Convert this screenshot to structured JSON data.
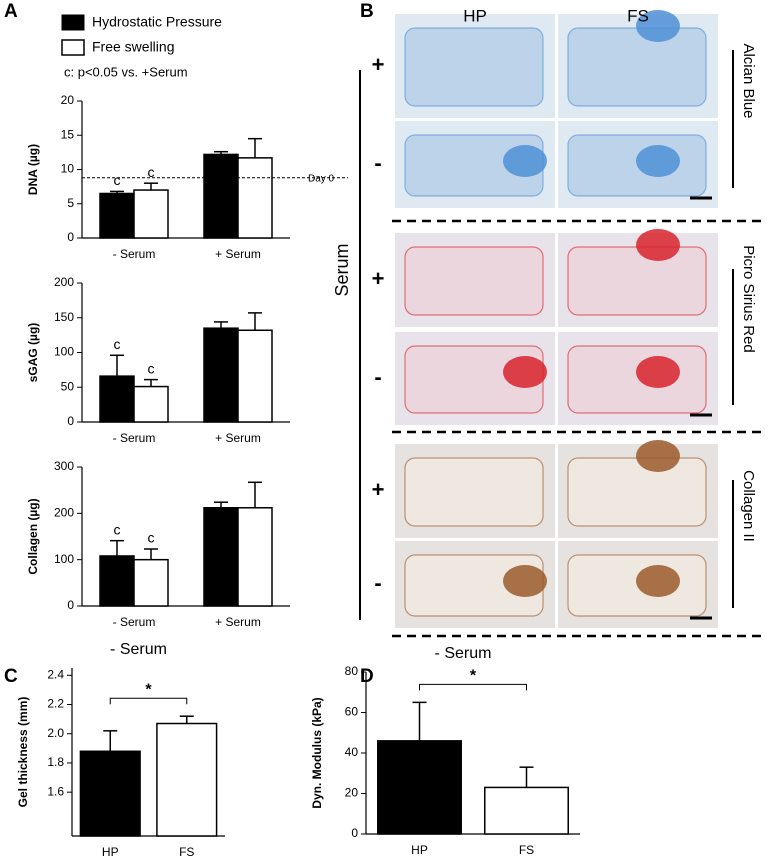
{
  "figure": {
    "panels": [
      "A",
      "B",
      "C",
      "D"
    ],
    "note": "c: p<0.05 vs. +Serum",
    "histology": {
      "columns": [
        "HP",
        "FS"
      ],
      "stains": [
        "Alcian Blue",
        "Picro Sirius Red",
        "Collagen II"
      ],
      "rows": [
        "+",
        "-",
        "+",
        "-",
        "+",
        "-"
      ],
      "factor": "Serum"
    }
  },
  "chart_data": [
    {
      "type": "bar",
      "y_label": "DNA (µg)",
      "categories": [
        "- Serum",
        "+ Serum"
      ],
      "series": [
        {
          "name": "Hydrostatic Pressure",
          "color": "#000000",
          "values": [
            6.5,
            12.2
          ],
          "errors": [
            0.3,
            0.4
          ],
          "labels": [
            "c",
            null
          ]
        },
        {
          "name": "Free swelling",
          "color": "#ffffff",
          "values": [
            7,
            11.7
          ],
          "errors": [
            1,
            2.8
          ],
          "labels": [
            "c",
            null
          ]
        }
      ],
      "reference_line": {
        "value": 8.8,
        "label": "Day 0"
      },
      "ylim": [
        0,
        20
      ],
      "yticks": [
        0,
        5,
        10,
        15,
        20
      ]
    },
    {
      "type": "bar",
      "y_label": "sGAG (µg)",
      "categories": [
        "- Serum",
        "+ Serum"
      ],
      "series": [
        {
          "color": "#000000",
          "values": [
            66,
            135
          ],
          "errors": [
            30,
            9
          ],
          "labels": [
            "c",
            null
          ]
        },
        {
          "color": "#ffffff",
          "values": [
            51,
            132
          ],
          "errors": [
            10,
            25
          ],
          "labels": [
            "c",
            null
          ]
        }
      ],
      "ylim": [
        0,
        200
      ],
      "yticks": [
        0,
        50,
        100,
        150,
        200
      ]
    },
    {
      "type": "bar",
      "y_label": "Collagen (µg)",
      "categories": [
        "- Serum",
        "+ Serum"
      ],
      "series": [
        {
          "color": "#000000",
          "values": [
            108,
            212
          ],
          "errors": [
            33,
            12
          ],
          "labels": [
            "c",
            null
          ]
        },
        {
          "color": "#ffffff",
          "values": [
            100,
            212
          ],
          "errors": [
            23,
            55
          ],
          "labels": [
            "c",
            null
          ]
        }
      ],
      "ylim": [
        0,
        300
      ],
      "yticks": [
        0,
        100,
        200,
        300
      ]
    },
    {
      "type": "bar",
      "title": "- Serum",
      "y_label": "Gel thickness (mm)",
      "categories": [
        "HP",
        "FS"
      ],
      "series": [
        {
          "colors": [
            "#000000",
            "#ffffff"
          ],
          "values": [
            1.88,
            2.07
          ],
          "errors": [
            0.14,
            0.05
          ]
        }
      ],
      "significance": {
        "label": "*"
      },
      "ylim": [
        1.3,
        2.45
      ],
      "yticks": [
        1.6,
        1.8,
        {
          "value": 2,
          "label": "2.0"
        },
        2.2,
        2.4
      ]
    },
    {
      "type": "bar",
      "title": "- Serum",
      "y_label": "Dyn. Modulus (kPa)",
      "categories": [
        "HP",
        "FS"
      ],
      "series": [
        {
          "colors": [
            "#000000",
            "#ffffff"
          ],
          "values": [
            46,
            23
          ],
          "errors": [
            19,
            10
          ]
        }
      ],
      "significance": {
        "label": "*"
      },
      "ylim": [
        0,
        80
      ],
      "yticks": [
        0,
        20,
        40,
        60,
        80
      ]
    }
  ]
}
